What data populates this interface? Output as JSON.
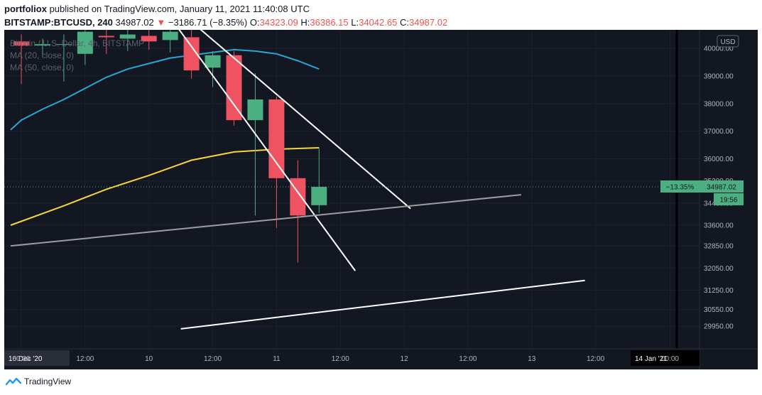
{
  "header": {
    "user": "portfoliox",
    "published_text": "published on TradingView.com, January 11, 2021 11:40:08 UTC",
    "symbol": "BITSTAMP:BTCUSD, 240",
    "price": "34987.02",
    "change_arrow": "▼",
    "change": "−3186.71 (−8.35%)",
    "o_label": "O:",
    "o_value": "34323.09",
    "h_label": "H:",
    "h_value": "36386.15",
    "l_label": "L:",
    "l_value": "34042.65",
    "c_label": "C:",
    "c_value": "34987.02"
  },
  "legend": {
    "line1": "Bitcoin / U.S. Dollar, 4h, BITSTAMP",
    "line2": "MA (20, close, 0)",
    "line3": "MA (50, close, 0)"
  },
  "footer": {
    "brand": "TradingView"
  },
  "colors": {
    "background": "#131722",
    "up": "#4caf82",
    "down": "#ef5361",
    "ma20": "#29a6d2",
    "ma50": "#f5d63b",
    "trend_white": "#ffffff",
    "trend_gray": "#9e9e9e",
    "price_badge": "#4caf82"
  },
  "chart_data": {
    "type": "candlestick",
    "currency_label": "USD",
    "y_ticks": [
      40000.0,
      39000.0,
      38000.0,
      37000.0,
      36000.0,
      35200.0,
      34400.0,
      33600.0,
      32850.0,
      32050.0,
      31250.0,
      30550.0,
      29950.0
    ],
    "y_tick_labels": [
      "40000.00",
      "39000.00",
      "38000.00",
      "37000.00",
      "36000.00",
      "35200.00",
      "34400.00",
      "33600.00",
      "32850.00",
      "32050.00",
      "31250.00",
      "30550.00",
      "29950.00"
    ],
    "x_ticks": [
      {
        "t": 0,
        "label": "00:00"
      },
      {
        "t": 3,
        "label": "12:00"
      },
      {
        "t": 6,
        "label": "10"
      },
      {
        "t": 9,
        "label": "12:00"
      },
      {
        "t": 12,
        "label": "11"
      },
      {
        "t": 15,
        "label": "12:00"
      },
      {
        "t": 18,
        "label": "12"
      },
      {
        "t": 21,
        "label": "12:00"
      },
      {
        "t": 24,
        "label": "13"
      },
      {
        "t": 27,
        "label": "12:00"
      },
      {
        "t": 30.5,
        "label": "00:00"
      }
    ],
    "x_highlight_left": "16 Dec '20",
    "x_highlight_right": "14 Jan '21",
    "candles": [
      {
        "t": 0,
        "o": 40250,
        "h": 40500,
        "l": 38700,
        "c": 40100
      },
      {
        "t": 1,
        "o": 40100,
        "h": 40350,
        "l": 39700,
        "c": 40150
      },
      {
        "t": 2,
        "o": 40150,
        "h": 40500,
        "l": 38800,
        "c": 40150
      },
      {
        "t": 3,
        "o": 39800,
        "h": 40800,
        "l": 39400,
        "c": 40600
      },
      {
        "t": 4,
        "o": 40450,
        "h": 40800,
        "l": 39800,
        "c": 40400
      },
      {
        "t": 5,
        "o": 40350,
        "h": 40950,
        "l": 39900,
        "c": 40500
      },
      {
        "t": 6,
        "o": 40450,
        "h": 40800,
        "l": 39950,
        "c": 40250
      },
      {
        "t": 7,
        "o": 40300,
        "h": 40700,
        "l": 39850,
        "c": 40600
      },
      {
        "t": 8,
        "o": 40400,
        "h": 40800,
        "l": 38900,
        "c": 39200
      },
      {
        "t": 9,
        "o": 39300,
        "h": 39900,
        "l": 38600,
        "c": 39750
      },
      {
        "t": 10,
        "o": 39750,
        "h": 39900,
        "l": 37200,
        "c": 37400
      },
      {
        "t": 11,
        "o": 37400,
        "h": 39100,
        "l": 33950,
        "c": 38150
      },
      {
        "t": 12,
        "o": 38150,
        "h": 38250,
        "l": 33500,
        "c": 35300
      },
      {
        "t": 13,
        "o": 35300,
        "h": 35950,
        "l": 32250,
        "c": 33950
      },
      {
        "t": 14,
        "o": 34323.09,
        "h": 36386.15,
        "l": 34042.65,
        "c": 34987.02
      }
    ],
    "ma20": [
      {
        "t": -0.5,
        "v": 37050
      },
      {
        "t": 0,
        "v": 37400
      },
      {
        "t": 1,
        "v": 37800
      },
      {
        "t": 2,
        "v": 38150
      },
      {
        "t": 3,
        "v": 38550
      },
      {
        "t": 4,
        "v": 38950
      },
      {
        "t": 5,
        "v": 39250
      },
      {
        "t": 6,
        "v": 39450
      },
      {
        "t": 7,
        "v": 39650
      },
      {
        "t": 8,
        "v": 39750
      },
      {
        "t": 9,
        "v": 39850
      },
      {
        "t": 10,
        "v": 39950
      },
      {
        "t": 11,
        "v": 39900
      },
      {
        "t": 12,
        "v": 39800
      },
      {
        "t": 13,
        "v": 39550
      },
      {
        "t": 14,
        "v": 39250
      }
    ],
    "ma50": [
      {
        "t": -0.5,
        "v": 33600
      },
      {
        "t": 2,
        "v": 34300
      },
      {
        "t": 4,
        "v": 34900
      },
      {
        "t": 6,
        "v": 35400
      },
      {
        "t": 8,
        "v": 35950
      },
      {
        "t": 10,
        "v": 36250
      },
      {
        "t": 12,
        "v": 36350
      },
      {
        "t": 14,
        "v": 36400
      }
    ],
    "trendlines": [
      {
        "color": "trend_white",
        "from": {
          "t": 8.4,
          "v": 40700
        },
        "to": {
          "t": 18.3,
          "v": 34200
        }
      },
      {
        "color": "trend_white",
        "from": {
          "t": 7.4,
          "v": 40700
        },
        "to": {
          "t": 15.7,
          "v": 31950
        }
      },
      {
        "color": "trend_gray",
        "from": {
          "t": -0.5,
          "v": 32850
        },
        "to": {
          "t": 23.5,
          "v": 34700
        }
      },
      {
        "color": "trend_white",
        "from": {
          "t": 7.5,
          "v": 29850
        },
        "to": {
          "t": 26.5,
          "v": 31600
        }
      }
    ],
    "last_price": 34987.02,
    "last_price_label": "34987.02",
    "change_pct_label": "−13.35%",
    "countdown_label": "19:56"
  }
}
